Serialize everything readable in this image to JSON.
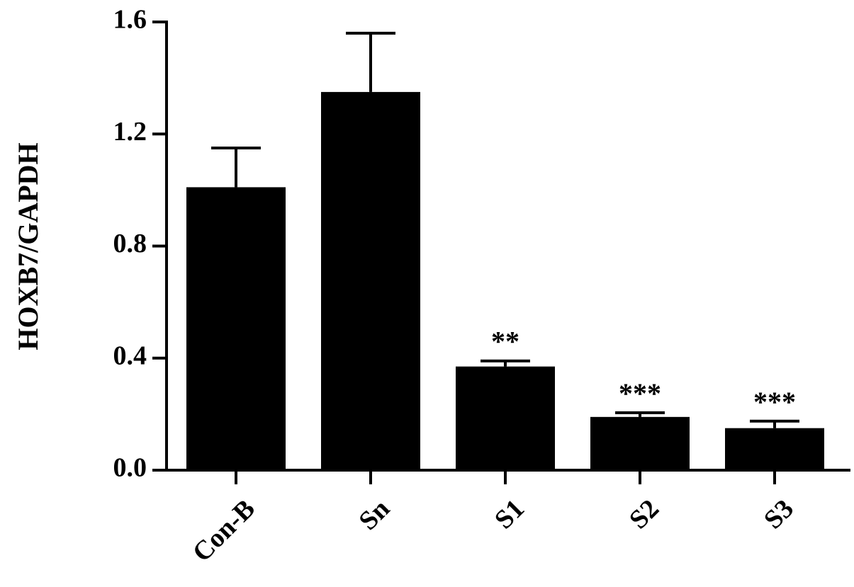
{
  "chart_data": {
    "type": "bar",
    "y_label": "HOXB7/GAPDH",
    "categories": [
      "Con-B",
      "Sn",
      "S1",
      "S2",
      "S3"
    ],
    "values": [
      1.01,
      1.35,
      0.37,
      0.19,
      0.15
    ],
    "errors": [
      0.14,
      0.21,
      0.02,
      0.015,
      0.025
    ],
    "annotations": [
      null,
      null,
      "**",
      "***",
      "***"
    ],
    "color": "#000000",
    "ylim": [
      0,
      1.6
    ],
    "yticks": [
      {
        "value": 0,
        "label": "0.0"
      },
      0.4,
      0.8,
      1.2,
      1.6
    ],
    "grid": false
  }
}
